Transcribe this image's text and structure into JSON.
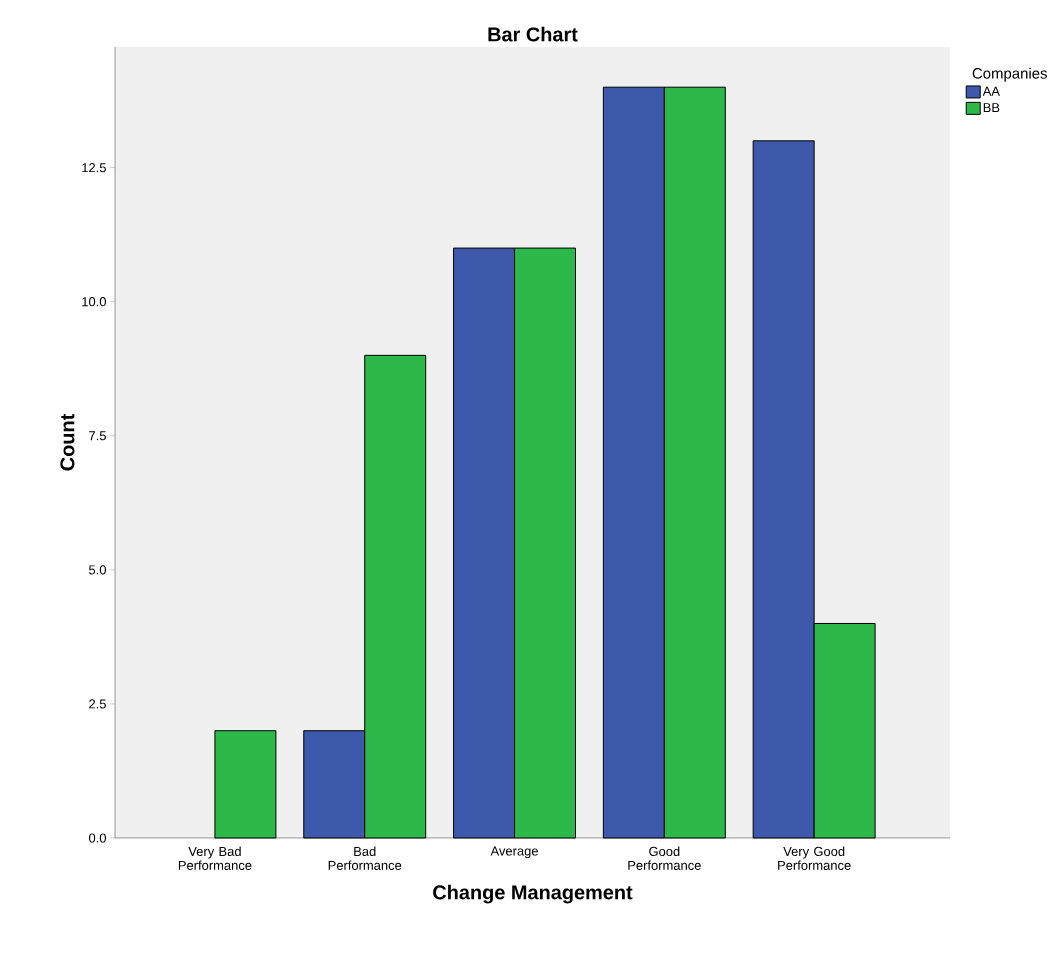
{
  "chart_data": {
    "type": "bar",
    "title": "Bar Chart",
    "xlabel": "Change Management",
    "ylabel": "Count",
    "legend_title": "Companies",
    "categories": [
      "Very Bad Performance",
      "Bad Performance",
      "Average",
      "Good Performance",
      "Very Good Performance"
    ],
    "series": [
      {
        "name": "AA",
        "color": "#3e58ac",
        "values": [
          null,
          2,
          11,
          14,
          13
        ]
      },
      {
        "name": "BB",
        "color": "#2db84a",
        "values": [
          2,
          9,
          11,
          14,
          4
        ]
      }
    ],
    "ylim": [
      0,
      14.75
    ],
    "yticks": [
      {
        "value": 0,
        "label": "0.0"
      },
      {
        "value": 2.5,
        "label": "2.5"
      },
      {
        "value": 5,
        "label": "5.0"
      },
      {
        "value": 7.5,
        "label": "7.5"
      },
      {
        "value": 10,
        "label": "10.0"
      },
      {
        "value": 12.5,
        "label": "12.5"
      }
    ],
    "legend": "top right"
  }
}
